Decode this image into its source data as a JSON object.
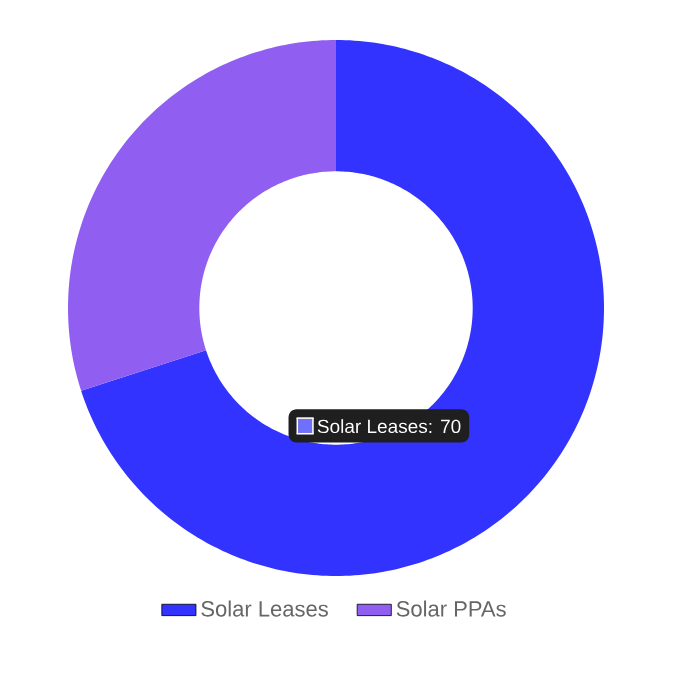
{
  "chart_data": {
    "type": "donut",
    "categories": [
      "Solar Leases",
      "Solar PPAs"
    ],
    "values": [
      70,
      30
    ],
    "colors": [
      "#3333ff",
      "#915ef2"
    ],
    "legend": "bottom",
    "annotations": [
      "Solar Leases: 70"
    ]
  }
}
